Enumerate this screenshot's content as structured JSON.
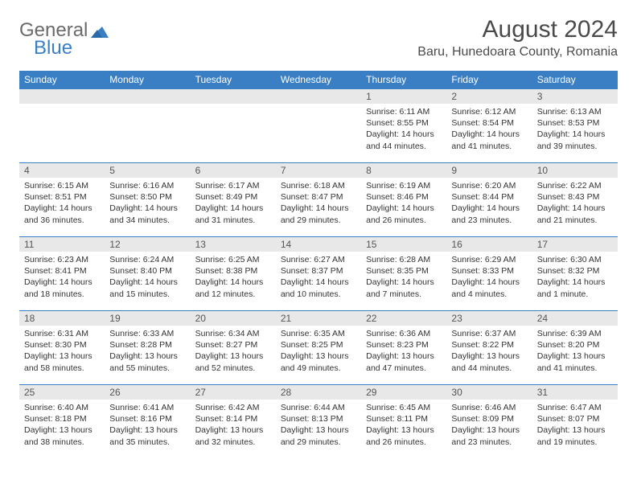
{
  "logo": {
    "text_general": "General",
    "text_blue": "Blue"
  },
  "header": {
    "month_title": "August 2024",
    "location": "Baru, Hunedoara County, Romania"
  },
  "colors": {
    "header_bg": "#3a7fc4",
    "header_text": "#ffffff",
    "daybar_bg": "#e8e8e8",
    "border": "#3a7fc4",
    "logo_gray": "#6a6a6a",
    "logo_blue": "#3a7fc4"
  },
  "calendar": {
    "daynames": [
      "Sunday",
      "Monday",
      "Tuesday",
      "Wednesday",
      "Thursday",
      "Friday",
      "Saturday"
    ],
    "weeks": [
      [
        null,
        null,
        null,
        null,
        {
          "n": "1",
          "sr": "6:11 AM",
          "ss": "8:55 PM",
          "dl": "14 hours and 44 minutes."
        },
        {
          "n": "2",
          "sr": "6:12 AM",
          "ss": "8:54 PM",
          "dl": "14 hours and 41 minutes."
        },
        {
          "n": "3",
          "sr": "6:13 AM",
          "ss": "8:53 PM",
          "dl": "14 hours and 39 minutes."
        }
      ],
      [
        {
          "n": "4",
          "sr": "6:15 AM",
          "ss": "8:51 PM",
          "dl": "14 hours and 36 minutes."
        },
        {
          "n": "5",
          "sr": "6:16 AM",
          "ss": "8:50 PM",
          "dl": "14 hours and 34 minutes."
        },
        {
          "n": "6",
          "sr": "6:17 AM",
          "ss": "8:49 PM",
          "dl": "14 hours and 31 minutes."
        },
        {
          "n": "7",
          "sr": "6:18 AM",
          "ss": "8:47 PM",
          "dl": "14 hours and 29 minutes."
        },
        {
          "n": "8",
          "sr": "6:19 AM",
          "ss": "8:46 PM",
          "dl": "14 hours and 26 minutes."
        },
        {
          "n": "9",
          "sr": "6:20 AM",
          "ss": "8:44 PM",
          "dl": "14 hours and 23 minutes."
        },
        {
          "n": "10",
          "sr": "6:22 AM",
          "ss": "8:43 PM",
          "dl": "14 hours and 21 minutes."
        }
      ],
      [
        {
          "n": "11",
          "sr": "6:23 AM",
          "ss": "8:41 PM",
          "dl": "14 hours and 18 minutes."
        },
        {
          "n": "12",
          "sr": "6:24 AM",
          "ss": "8:40 PM",
          "dl": "14 hours and 15 minutes."
        },
        {
          "n": "13",
          "sr": "6:25 AM",
          "ss": "8:38 PM",
          "dl": "14 hours and 12 minutes."
        },
        {
          "n": "14",
          "sr": "6:27 AM",
          "ss": "8:37 PM",
          "dl": "14 hours and 10 minutes."
        },
        {
          "n": "15",
          "sr": "6:28 AM",
          "ss": "8:35 PM",
          "dl": "14 hours and 7 minutes."
        },
        {
          "n": "16",
          "sr": "6:29 AM",
          "ss": "8:33 PM",
          "dl": "14 hours and 4 minutes."
        },
        {
          "n": "17",
          "sr": "6:30 AM",
          "ss": "8:32 PM",
          "dl": "14 hours and 1 minute."
        }
      ],
      [
        {
          "n": "18",
          "sr": "6:31 AM",
          "ss": "8:30 PM",
          "dl": "13 hours and 58 minutes."
        },
        {
          "n": "19",
          "sr": "6:33 AM",
          "ss": "8:28 PM",
          "dl": "13 hours and 55 minutes."
        },
        {
          "n": "20",
          "sr": "6:34 AM",
          "ss": "8:27 PM",
          "dl": "13 hours and 52 minutes."
        },
        {
          "n": "21",
          "sr": "6:35 AM",
          "ss": "8:25 PM",
          "dl": "13 hours and 49 minutes."
        },
        {
          "n": "22",
          "sr": "6:36 AM",
          "ss": "8:23 PM",
          "dl": "13 hours and 47 minutes."
        },
        {
          "n": "23",
          "sr": "6:37 AM",
          "ss": "8:22 PM",
          "dl": "13 hours and 44 minutes."
        },
        {
          "n": "24",
          "sr": "6:39 AM",
          "ss": "8:20 PM",
          "dl": "13 hours and 41 minutes."
        }
      ],
      [
        {
          "n": "25",
          "sr": "6:40 AM",
          "ss": "8:18 PM",
          "dl": "13 hours and 38 minutes."
        },
        {
          "n": "26",
          "sr": "6:41 AM",
          "ss": "8:16 PM",
          "dl": "13 hours and 35 minutes."
        },
        {
          "n": "27",
          "sr": "6:42 AM",
          "ss": "8:14 PM",
          "dl": "13 hours and 32 minutes."
        },
        {
          "n": "28",
          "sr": "6:44 AM",
          "ss": "8:13 PM",
          "dl": "13 hours and 29 minutes."
        },
        {
          "n": "29",
          "sr": "6:45 AM",
          "ss": "8:11 PM",
          "dl": "13 hours and 26 minutes."
        },
        {
          "n": "30",
          "sr": "6:46 AM",
          "ss": "8:09 PM",
          "dl": "13 hours and 23 minutes."
        },
        {
          "n": "31",
          "sr": "6:47 AM",
          "ss": "8:07 PM",
          "dl": "13 hours and 19 minutes."
        }
      ]
    ]
  },
  "labels": {
    "sunrise_prefix": "Sunrise: ",
    "sunset_prefix": "Sunset: ",
    "daylight_prefix": "Daylight: "
  }
}
